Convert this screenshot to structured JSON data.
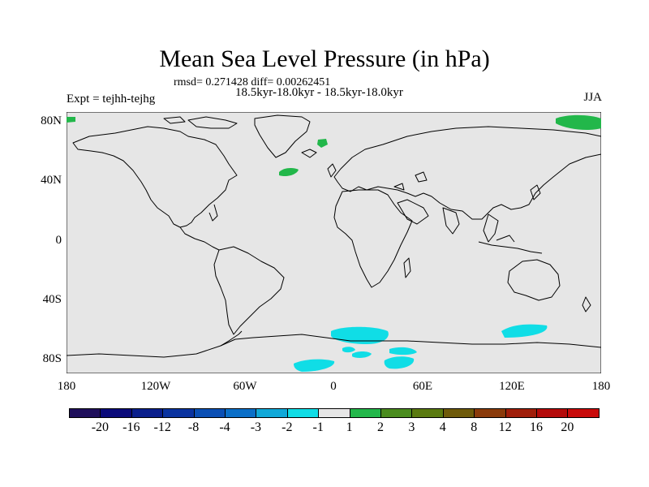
{
  "header": {
    "title": "Mean Sea Level Pressure (in hPa)",
    "stats": "rmsd= 0.271428 diff= 0.00262451",
    "period": "18.5kyr-18.0kyr - 18.5kyr-18.0kyr",
    "expt": "Expt = tejhh-tejhg",
    "season": "JJA"
  },
  "axes": {
    "lat_ticks": [
      "80N",
      "40N",
      "0",
      "40S",
      "80S"
    ],
    "lon_ticks": [
      "180",
      "120W",
      "60W",
      "0",
      "60E",
      "120E",
      "180"
    ]
  },
  "colors": {
    "ocean_land_fill": "#e6e6e6",
    "coast": "#000000",
    "positive_anomaly": "#22b74a",
    "negative_anomaly": "#10dde6"
  },
  "colorbar": {
    "labels": [
      "-20",
      "-16",
      "-12",
      "-8",
      "-4",
      "-3",
      "-2",
      "-1",
      "1",
      "2",
      "3",
      "4",
      "8",
      "12",
      "16",
      "20"
    ],
    "colors": [
      "#1f0f5b",
      "#0a0a7a",
      "#0a1f8c",
      "#0a33a0",
      "#0a4fb4",
      "#0a6fc8",
      "#10a8d8",
      "#10dde6",
      "#e6e6e6",
      "#22b74a",
      "#4a8c1e",
      "#5a7a10",
      "#6e5a0a",
      "#8a3a0a",
      "#a01e0a",
      "#b40a0a",
      "#c80a0a"
    ]
  }
}
